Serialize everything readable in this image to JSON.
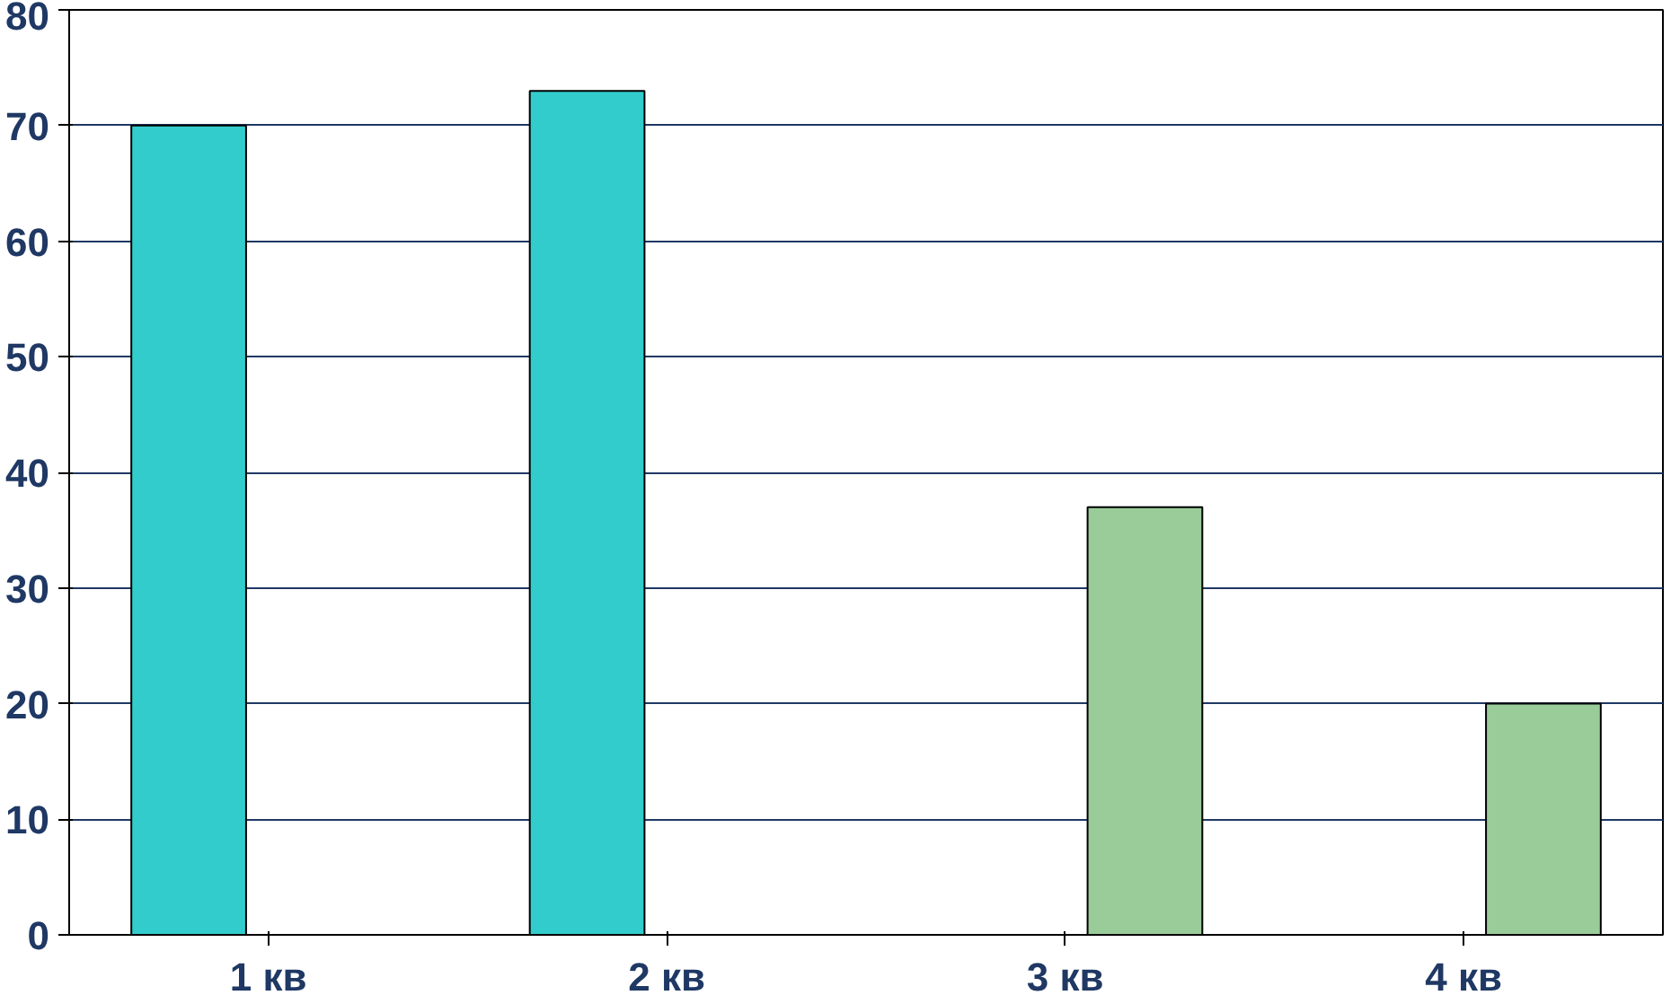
{
  "chart_data": {
    "type": "bar",
    "categories": [
      "1 кв",
      "2 кв",
      "3 кв",
      "4 кв"
    ],
    "series": [
      {
        "color": "#33cccc",
        "values": [
          70,
          73,
          null,
          null
        ]
      },
      {
        "color": "#99cc99",
        "values": [
          null,
          null,
          37,
          20
        ]
      }
    ],
    "ylim": [
      0,
      80
    ],
    "yticks": [
      0,
      10,
      20,
      30,
      40,
      50,
      60,
      70,
      80
    ],
    "grid": "y"
  }
}
